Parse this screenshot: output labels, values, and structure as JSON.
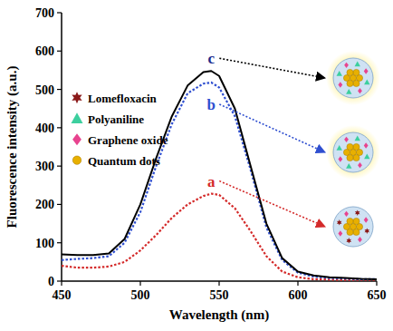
{
  "chart_data": {
    "type": "line",
    "x_label": "Wavelength (nm)",
    "y_label": "Fluorescence intensity (a.u.)",
    "x": [
      450,
      460,
      470,
      480,
      490,
      500,
      510,
      520,
      530,
      540,
      545,
      550,
      560,
      570,
      580,
      590,
      600,
      610,
      620,
      630,
      640,
      650
    ],
    "series": [
      {
        "name": "a",
        "color": "#d42a2a",
        "line_style": "dotted",
        "values": [
          40,
          35,
          35,
          38,
          50,
          80,
          120,
          165,
          200,
          222,
          228,
          225,
          190,
          130,
          65,
          25,
          10,
          5,
          4,
          3,
          3,
          3
        ]
      },
      {
        "name": "b",
        "color": "#2f4fd0",
        "line_style": "dotted",
        "values": [
          55,
          58,
          60,
          65,
          100,
          180,
          300,
          410,
          490,
          515,
          518,
          505,
          430,
          290,
          140,
          55,
          22,
          12,
          8,
          7,
          5,
          5
        ]
      },
      {
        "name": "c",
        "color": "#000000",
        "line_style": "solid",
        "values": [
          70,
          68,
          68,
          72,
          110,
          200,
          320,
          430,
          510,
          545,
          548,
          535,
          450,
          300,
          150,
          60,
          25,
          15,
          10,
          8,
          6,
          5
        ]
      }
    ],
    "xlim": [
      450,
      650
    ],
    "xticks": [
      450,
      500,
      550,
      600,
      650
    ],
    "ylim": [
      0,
      700
    ],
    "yticks": [
      0,
      100,
      200,
      300,
      400,
      500,
      600,
      700
    ],
    "grid": false,
    "annotations": [
      {
        "text": "Lomefloxacin",
        "marker": "star",
        "color": "#8b1a1a"
      },
      {
        "text": "Polyaniline",
        "marker": "triangle",
        "color": "#3ccf9e"
      },
      {
        "text": "Graphene oxide",
        "marker": "diamond",
        "color": "#e8438f"
      },
      {
        "text": "Quantum dots",
        "marker": "circle",
        "color": "#e8b000"
      }
    ]
  }
}
